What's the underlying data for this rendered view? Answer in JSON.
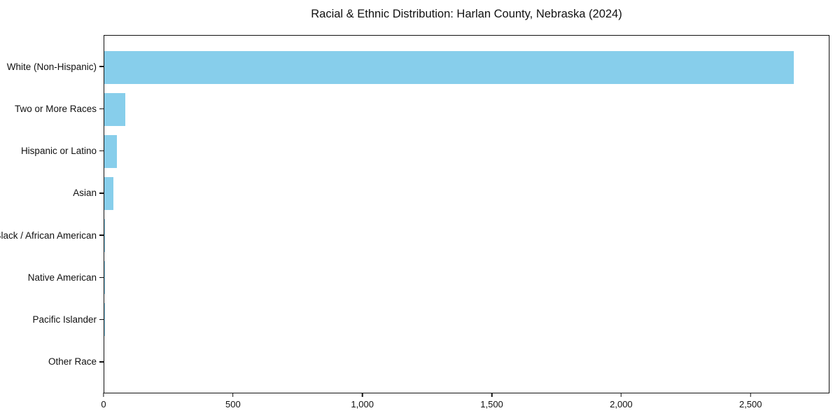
{
  "chart_data": {
    "type": "bar",
    "orientation": "horizontal",
    "title": "Racial & Ethnic Distribution: Harlan County, Nebraska (2024)",
    "categories": [
      "White (Non-Hispanic)",
      "Two or More Races",
      "Hispanic or Latino",
      "Asian",
      "Black / African American",
      "Native American",
      "Pacific Islander",
      "Other Race"
    ],
    "values": [
      2670,
      80,
      50,
      36,
      4,
      2,
      1,
      0
    ],
    "xlabel": "",
    "ylabel": "",
    "xlim": [
      0,
      2805
    ],
    "xticks": [
      0,
      500,
      1000,
      1500,
      2000,
      2500
    ],
    "xtick_labels": [
      "0",
      "500",
      "1,000",
      "1,500",
      "2,000",
      "2,500"
    ],
    "bar_color": "#87CEEB",
    "text_color": "#111111",
    "background_color": "#ffffff",
    "grid": false,
    "legend": null,
    "largest_bar_on_top": true
  }
}
